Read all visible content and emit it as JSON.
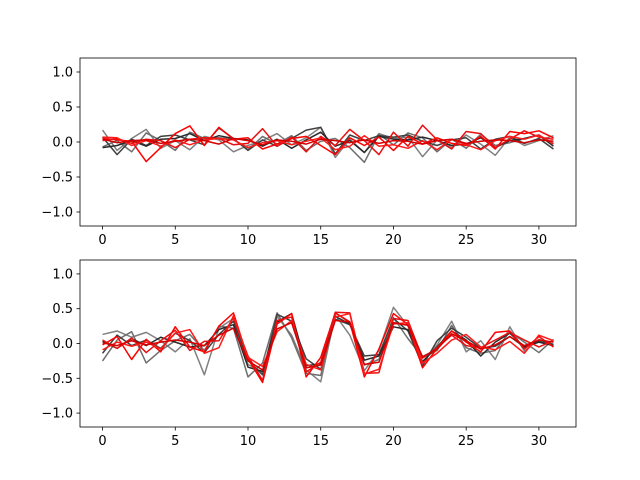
{
  "chart_data": [
    {
      "type": "line",
      "xlim": [
        -1.55,
        32.55
      ],
      "ylim": [
        -1.2,
        1.2
      ],
      "xticks": [
        0,
        5,
        10,
        15,
        20,
        25,
        30
      ],
      "xtick_labels": [
        "0",
        "5",
        "10",
        "15",
        "20",
        "25",
        "30"
      ],
      "yticks": [
        1.0,
        0.5,
        0.0,
        -0.5,
        -1.0
      ],
      "ytick_labels": [
        "1.0",
        "0.5",
        "0.0",
        "−0.5",
        "−1.0"
      ],
      "x": [
        0,
        1,
        2,
        3,
        4,
        5,
        6,
        7,
        8,
        9,
        10,
        11,
        12,
        13,
        14,
        15,
        16,
        17,
        18,
        19,
        20,
        21,
        22,
        23,
        24,
        25,
        26,
        27,
        28,
        29,
        30,
        31
      ],
      "grid": false,
      "series": [
        {
          "color": "#808080",
          "values": [
            0.17,
            -0.12,
            0.05,
            0.18,
            -0.09,
            0.02,
            -0.11,
            0.08,
            0.03,
            -0.14,
            -0.05,
            0.02,
            0.12,
            -0.04,
            0.06,
            0.21,
            -0.22,
            0.04,
            -0.15,
            0.12,
            0.05,
            0.07,
            -0.21,
            0.03,
            -0.08,
            0.1,
            -0.03,
            -0.19,
            0.07,
            -0.05,
            0.02,
            0.09
          ]
        },
        {
          "color": "#6e6e6e",
          "values": [
            -0.07,
            0.02,
            -0.14,
            0.13,
            0.02,
            -0.12,
            0.14,
            0.05,
            0.06,
            0.04,
            -0.11,
            0.08,
            -0.03,
            0.09,
            -0.12,
            0.01,
            0.05,
            -0.08,
            -0.29,
            0.11,
            -0.04,
            0.13,
            0.06,
            -0.14,
            0.04,
            -0.09,
            0.11,
            -0.05,
            -0.01,
            0.05,
            0.1,
            -0.02
          ]
        },
        {
          "color": "#404040",
          "values": [
            0.07,
            -0.18,
            0.04,
            -0.05,
            0.08,
            0.1,
            0.03,
            -0.04,
            0.2,
            0.05,
            -0.12,
            0.03,
            -0.06,
            0.05,
            0.17,
            0.21,
            -0.17,
            0.1,
            0.02,
            0.09,
            0.07,
            0.1,
            0.01,
            -0.05,
            0.03,
            0.06,
            -0.1,
            0.04,
            0.08,
            -0.02,
            0.05,
            -0.1
          ]
        },
        {
          "color": "#2a2a2a",
          "values": [
            -0.08,
            -0.05,
            0.02,
            -0.06,
            0.04,
            0.05,
            0.12,
            0.02,
            0.09,
            0.05,
            0.03,
            -0.06,
            0.04,
            -0.09,
            0.03,
            0.14,
            -0.06,
            0.02,
            -0.15,
            0.08,
            0.04,
            0.03,
            0.07,
            0.02,
            -0.05,
            -0.03,
            0.06,
            -0.08,
            0.02,
            0.05,
            0.1,
            -0.06
          ]
        },
        {
          "color": "#ff0000",
          "values": [
            0.05,
            0.03,
            0.01,
            -0.28,
            -0.08,
            0.12,
            0.23,
            -0.05,
            0.21,
            0.04,
            0.06,
            -0.1,
            -0.03,
            0.05,
            0.08,
            -0.05,
            -0.18,
            0.06,
            -0.05,
            0.07,
            -0.12,
            0.08,
            -0.03,
            0.06,
            -0.02,
            -0.05,
            0.08,
            -0.1,
            0.15,
            0.12,
            0.16,
            0.06
          ]
        },
        {
          "color": "#e81010",
          "values": [
            0.02,
            0.05,
            -0.02,
            0.04,
            0.02,
            -0.08,
            0.04,
            0.06,
            0.05,
            -0.04,
            -0.02,
            0.19,
            -0.06,
            0.07,
            -0.14,
            0.08,
            -0.05,
            0.18,
            0.02,
            -0.18,
            0.14,
            -0.06,
            0.24,
            0.03,
            -0.1,
            0.15,
            0.12,
            -0.08,
            0.04,
            0.16,
            0.07,
            0.04
          ]
        },
        {
          "color": "#ff1a1a",
          "values": [
            0.07,
            0.06,
            -0.05,
            0.02,
            -0.06,
            0.03,
            -0.04,
            0.03,
            0.05,
            0.03,
            -0.08,
            -0.01,
            0.02,
            -0.04,
            0.01,
            0.06,
            -0.11,
            -0.06,
            0.09,
            -0.06,
            -0.04,
            -0.09,
            0.02,
            -0.11,
            0.04,
            -0.04,
            -0.11,
            0.02,
            0.08,
            0.04,
            0.1,
            -0.03
          ]
        },
        {
          "color": "#d40000",
          "values": [
            0.04,
            -0.01,
            0.02,
            0.03,
            -0.02,
            0.01,
            0.04,
            0.02,
            -0.03,
            0.05,
            0.02,
            -0.04,
            0.03,
            0.01,
            -0.03,
            0.04,
            0.02,
            -0.01,
            0.03,
            -0.02,
            0.02,
            0.01,
            -0.03,
            0.02,
            0.04,
            -0.02,
            0.01,
            0.03,
            0.02,
            -0.01,
            0.03,
            0.01
          ]
        }
      ]
    },
    {
      "type": "line",
      "xlim": [
        -1.55,
        32.55
      ],
      "ylim": [
        -1.2,
        1.2
      ],
      "xticks": [
        0,
        5,
        10,
        15,
        20,
        25,
        30
      ],
      "xtick_labels": [
        "0",
        "5",
        "10",
        "15",
        "20",
        "25",
        "30"
      ],
      "yticks": [
        1.0,
        0.5,
        0.0,
        -0.5,
        -1.0
      ],
      "ytick_labels": [
        "1.0",
        "0.5",
        "0.0",
        "−0.5",
        "−1.0"
      ],
      "x": [
        0,
        1,
        2,
        3,
        4,
        5,
        6,
        7,
        8,
        9,
        10,
        11,
        12,
        13,
        14,
        15,
        16,
        17,
        18,
        19,
        20,
        21,
        22,
        23,
        24,
        25,
        26,
        27,
        28,
        29,
        30,
        31
      ],
      "grid": false,
      "series": [
        {
          "color": "#808080",
          "values": [
            0.13,
            0.18,
            0.09,
            0.16,
            0.04,
            -0.12,
            0.07,
            -0.45,
            0.22,
            0.36,
            -0.3,
            -0.42,
            0.39,
            0.12,
            -0.38,
            -0.55,
            0.41,
            0.12,
            -0.39,
            -0.1,
            0.52,
            0.25,
            -0.27,
            -0.02,
            0.32,
            -0.12,
            0.04,
            -0.23,
            0.24,
            -0.11,
            0.06,
            -0.02
          ]
        },
        {
          "color": "#6e6e6e",
          "values": [
            -0.25,
            0.05,
            0.17,
            -0.28,
            -0.1,
            0.04,
            0.13,
            -0.1,
            0.25,
            0.22,
            -0.48,
            -0.28,
            0.44,
            0.08,
            -0.43,
            -0.46,
            0.44,
            0.3,
            -0.31,
            -0.23,
            0.37,
            0.07,
            -0.2,
            -0.1,
            0.26,
            -0.06,
            -0.14,
            -0.1,
            0.17,
            0.02,
            -0.13,
            0.06
          ]
        },
        {
          "color": "#404040",
          "values": [
            -0.14,
            0.12,
            -0.03,
            0.05,
            -0.07,
            0.15,
            0.04,
            -0.13,
            0.13,
            0.32,
            -0.24,
            -0.45,
            0.42,
            0.32,
            -0.22,
            -0.37,
            0.35,
            0.27,
            -0.18,
            -0.16,
            0.36,
            0.18,
            -0.32,
            0.04,
            0.22,
            0.09,
            -0.07,
            -0.04,
            0.1,
            -0.05,
            0.03,
            -0.01
          ]
        },
        {
          "color": "#2a2a2a",
          "values": [
            0.03,
            -0.07,
            0.07,
            -0.03,
            0.09,
            0.02,
            -0.05,
            -0.03,
            0.2,
            0.27,
            -0.34,
            -0.4,
            0.31,
            0.43,
            -0.32,
            -0.29,
            0.39,
            0.28,
            -0.24,
            -0.18,
            0.24,
            0.2,
            -0.26,
            -0.05,
            0.18,
            0.05,
            -0.18,
            0.02,
            0.15,
            -0.05,
            0.02,
            -0.03
          ]
        },
        {
          "color": "#ff0000",
          "values": [
            -0.02,
            0.1,
            -0.23,
            0.06,
            -0.12,
            0.24,
            -0.05,
            -0.12,
            0.25,
            0.44,
            -0.22,
            -0.56,
            0.28,
            0.43,
            -0.48,
            -0.2,
            0.44,
            0.31,
            -0.48,
            -0.08,
            0.43,
            0.27,
            -0.35,
            -0.07,
            0.18,
            0.02,
            -0.12,
            0.16,
            0.18,
            -0.08,
            0.1,
            -0.05
          ]
        },
        {
          "color": "#e81010",
          "values": [
            0.05,
            -0.07,
            0.08,
            -0.13,
            0.04,
            0.19,
            -0.1,
            0.03,
            0.04,
            0.37,
            -0.18,
            -0.53,
            0.33,
            0.38,
            -0.41,
            -0.27,
            0.45,
            0.44,
            -0.43,
            -0.42,
            0.36,
            0.33,
            -0.21,
            -0.06,
            0.12,
            -0.03,
            -0.06,
            0.05,
            0.16,
            0.05,
            -0.05,
            0.04
          ]
        },
        {
          "color": "#ff1a1a",
          "values": [
            -0.09,
            0.02,
            -0.04,
            0.02,
            -0.08,
            0.15,
            0.2,
            -0.14,
            -0.06,
            0.4,
            -0.2,
            -0.33,
            0.17,
            0.33,
            -0.3,
            -0.38,
            0.38,
            0.43,
            -0.44,
            -0.37,
            0.28,
            0.3,
            -0.28,
            -0.14,
            0.05,
            0.13,
            -0.05,
            -0.09,
            0.03,
            -0.14,
            0.12,
            0.04
          ]
        },
        {
          "color": "#d40000",
          "values": [
            0.01,
            -0.03,
            0.04,
            -0.02,
            0.02,
            0.05,
            0.02,
            -0.03,
            0.12,
            0.22,
            -0.25,
            -0.38,
            0.21,
            0.3,
            -0.35,
            -0.31,
            0.33,
            0.31,
            -0.3,
            -0.27,
            0.3,
            0.26,
            -0.19,
            -0.08,
            0.14,
            0.04,
            -0.08,
            -0.02,
            0.1,
            -0.03,
            0.05,
            0.02
          ]
        }
      ]
    }
  ]
}
